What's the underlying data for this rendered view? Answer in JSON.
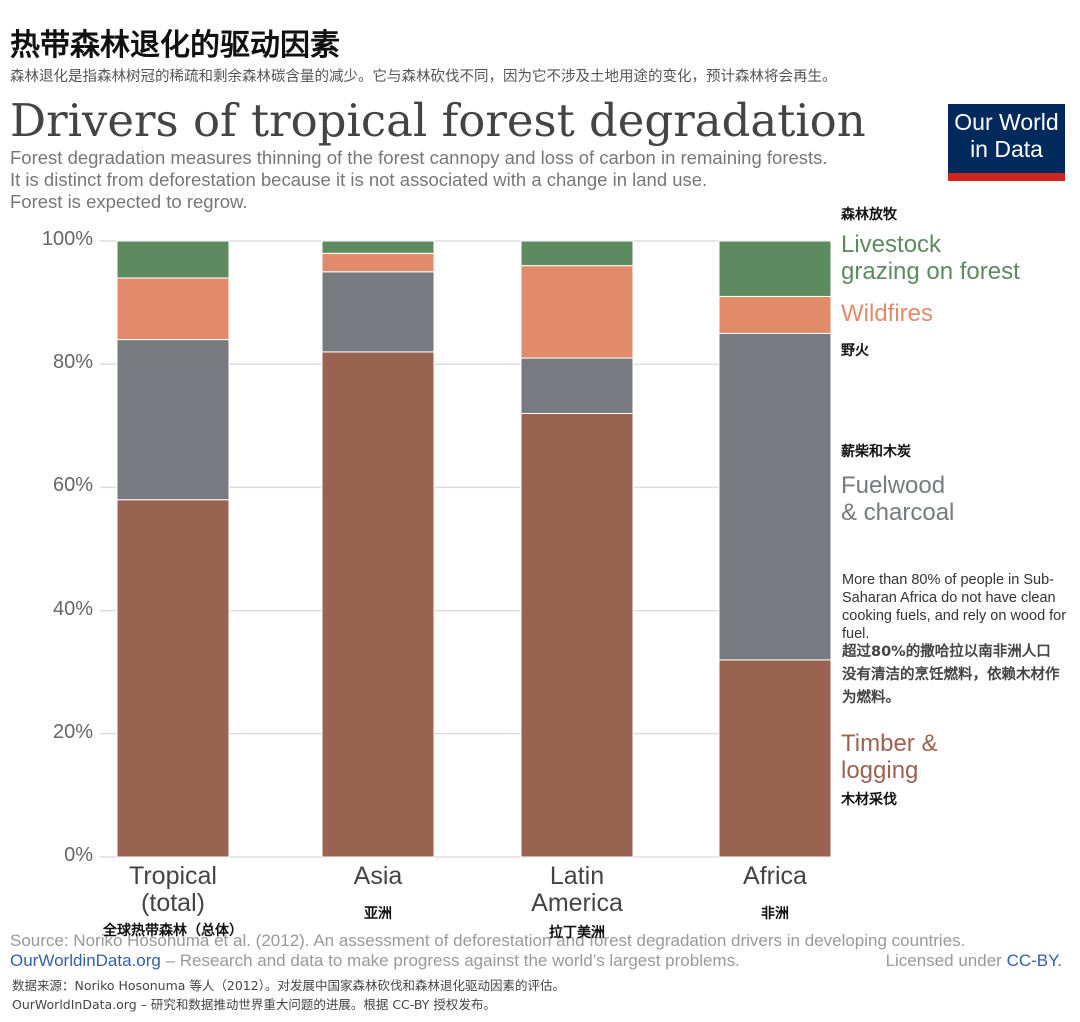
{
  "header": {
    "title": "热带森林退化的驱动因素",
    "subtitle": "森林退化是指森林树冠的稀疏和剩余森林碳含量的减少。它与森林砍伐不同，因为它不涉及土地用途的变化，预计森林将会再生。"
  },
  "chart_data": {
    "type": "stacked_bar",
    "title": "Drivers of tropical forest degradation",
    "subtitle": [
      "Forest degradation measures thinning of the forest cannopy and loss of carbon in remaining forests.",
      "It is distinct from deforestation because it is not associated with a change in land use.",
      "Forest is expected to regrow."
    ],
    "logo": "Our World in Data",
    "categories": [
      "Tropical (total)",
      "Asia",
      "Latin America",
      "Africa"
    ],
    "categories_zh": [
      "全球热带森林（总体）",
      "亚洲",
      "拉丁美洲",
      "非洲"
    ],
    "series": [
      {
        "name": "Timber & logging",
        "name_zh": "木材采伐",
        "color": "#9a6351",
        "values": [
          58,
          82,
          72,
          32
        ]
      },
      {
        "name": "Fuelwood & charcoal",
        "name_zh": "薪柴和木炭",
        "color": "#777b7f",
        "values": [
          26,
          13,
          9,
          53
        ]
      },
      {
        "name": "Wildfires",
        "name_zh": "野火",
        "color": "#e28b6a",
        "values": [
          10,
          3,
          15,
          6
        ]
      },
      {
        "name": "Livestock grazing on forest",
        "name_zh": "森林放牧",
        "color": "#5d8a5f",
        "values": [
          6,
          2,
          4,
          9
        ]
      }
    ],
    "ylim": [
      0,
      100
    ],
    "yticks": [
      {
        "value": 0,
        "label": "0%"
      },
      {
        "value": 20,
        "label": "20%"
      },
      {
        "value": 40,
        "label": "40%"
      },
      {
        "value": 60,
        "label": "60%"
      },
      {
        "value": 80,
        "label": "80%"
      },
      {
        "value": 100,
        "label": "100%"
      }
    ],
    "grid": true,
    "annotation": {
      "en": "More than 80% of people in Sub-Saharan Africa do not have clean cooking fuels, and rely on wood for fuel.",
      "zh": "超过80%的撒哈拉以南非洲人口没有清洁的烹饪燃料，依赖木材作为燃料。"
    },
    "source": "Source: Noriko Hosonuma et al. (2012). An assessment of deforestation and forest degradation drivers in developing countries.",
    "site": "OurWorldinData.org",
    "tagline": "– Research and data to make progress against the world’s largest problems.",
    "license": "Licensed under",
    "license_link": "CC-BY."
  },
  "footer_zh": [
    "数据来源：Noriko Hosonuma 等人（2012）。对发展中国家森林砍伐和森林退化驱动因素的评估。",
    "OurWorldInData.org – 研究和数据推动世界重大问题的进展。根据 CC-BY 授权发布。"
  ]
}
